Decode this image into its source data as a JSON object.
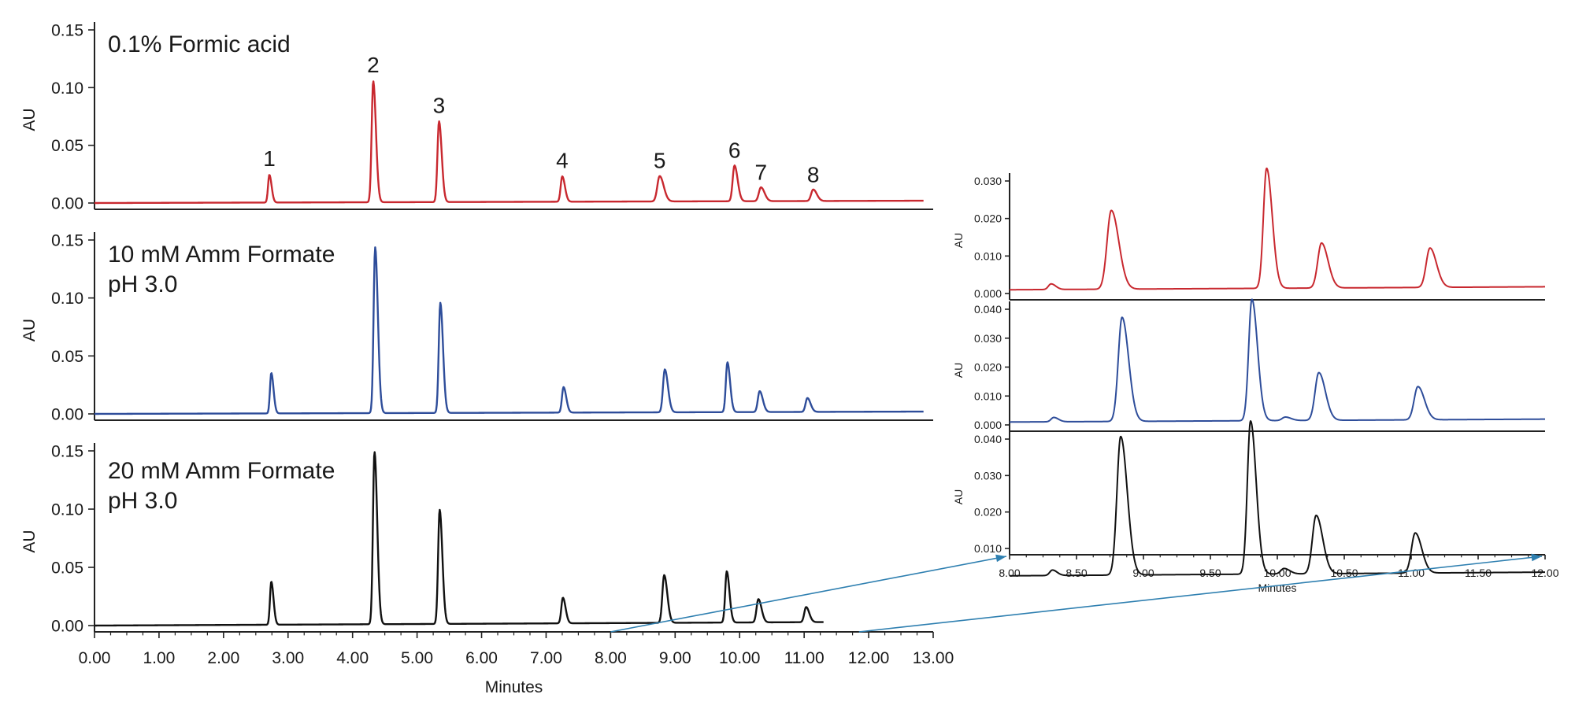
{
  "colors": {
    "red": "#c8282f",
    "blue": "#2e4d9a",
    "black": "#111111",
    "arrow": "#2e7fb0",
    "axis": "#222222"
  },
  "chart_data": [
    {
      "type": "line",
      "panel": "main-1",
      "title": "0.1% Formic acid",
      "title2": "",
      "ylabel": "AU",
      "xlabel": "",
      "xlim": [
        0,
        13
      ],
      "ylim": [
        -0.005,
        0.15
      ],
      "yticks": [
        "0.15",
        "0.10",
        "0.05",
        "0.00"
      ],
      "xticks": [],
      "color_key": "red",
      "x_end": 12.85,
      "baseline": 0.0,
      "rise_end": 0.002,
      "peaks": [
        {
          "label": "1",
          "x": 2.71,
          "y": 0.024,
          "w": 0.025
        },
        {
          "label": "2",
          "x": 4.32,
          "y": 0.105,
          "w": 0.03
        },
        {
          "label": "3",
          "x": 5.34,
          "y": 0.07,
          "w": 0.03
        },
        {
          "label": "4",
          "x": 7.25,
          "y": 0.022,
          "w": 0.03
        },
        {
          "label": "5",
          "x": 8.76,
          "y": 0.022,
          "w": 0.045
        },
        {
          "label": "6",
          "x": 9.92,
          "y": 0.031,
          "w": 0.035
        },
        {
          "label": "7",
          "x": 10.33,
          "y": 0.012,
          "w": 0.04
        },
        {
          "label": "8",
          "x": 11.14,
          "y": 0.01,
          "w": 0.04
        }
      ]
    },
    {
      "type": "line",
      "panel": "main-2",
      "title": "10 mM Amm Formate",
      "title2": "pH 3.0",
      "ylabel": "AU",
      "xlabel": "",
      "xlim": [
        0,
        13
      ],
      "ylim": [
        -0.005,
        0.15
      ],
      "yticks": [
        "0.15",
        "0.10",
        "0.05",
        "0.00"
      ],
      "xticks": [],
      "color_key": "blue",
      "x_end": 12.85,
      "baseline": 0.0,
      "rise_end": 0.002,
      "peaks": [
        {
          "label": "",
          "x": 2.74,
          "y": 0.035,
          "w": 0.025
        },
        {
          "label": "",
          "x": 4.35,
          "y": 0.143,
          "w": 0.03
        },
        {
          "label": "",
          "x": 5.36,
          "y": 0.095,
          "w": 0.03
        },
        {
          "label": "",
          "x": 7.27,
          "y": 0.022,
          "w": 0.03
        },
        {
          "label": "",
          "x": 8.84,
          "y": 0.037,
          "w": 0.035
        },
        {
          "label": "",
          "x": 9.81,
          "y": 0.043,
          "w": 0.03
        },
        {
          "label": "",
          "x": 10.31,
          "y": 0.018,
          "w": 0.035
        },
        {
          "label": "",
          "x": 11.05,
          "y": 0.012,
          "w": 0.035
        }
      ]
    },
    {
      "type": "line",
      "panel": "main-3",
      "title": "20 mM Amm Formate",
      "title2": "pH 3.0",
      "ylabel": "AU",
      "xlabel": "Minutes",
      "xlim": [
        0,
        13
      ],
      "ylim": [
        -0.005,
        0.15
      ],
      "yticks": [
        "0.15",
        "0.10",
        "0.05",
        "0.00"
      ],
      "xticks": [
        "0.00",
        "1.00",
        "2.00",
        "3.00",
        "4.00",
        "5.00",
        "6.00",
        "7.00",
        "8.00",
        "9.00",
        "10.00",
        "11.00",
        "12.00",
        "13.00"
      ],
      "color_key": "black",
      "x_end": 11.3,
      "baseline": 0.0,
      "rise_end": 0.003,
      "peaks": [
        {
          "label": "",
          "x": 2.74,
          "y": 0.037,
          "w": 0.025
        },
        {
          "label": "",
          "x": 4.34,
          "y": 0.148,
          "w": 0.03
        },
        {
          "label": "",
          "x": 5.35,
          "y": 0.098,
          "w": 0.03
        },
        {
          "label": "",
          "x": 7.26,
          "y": 0.022,
          "w": 0.03
        },
        {
          "label": "",
          "x": 8.83,
          "y": 0.041,
          "w": 0.035
        },
        {
          "label": "",
          "x": 9.8,
          "y": 0.044,
          "w": 0.03
        },
        {
          "label": "",
          "x": 10.29,
          "y": 0.02,
          "w": 0.035
        },
        {
          "label": "",
          "x": 11.03,
          "y": 0.013,
          "w": 0.035
        }
      ]
    },
    {
      "type": "line",
      "panel": "zoom-1",
      "title": "",
      "title2": "",
      "ylabel": "AU",
      "xlabel": "",
      "xlim": [
        8.0,
        12.0
      ],
      "ylim": [
        0,
        0.034
      ],
      "yticks": [
        "0.030",
        "0.020",
        "0.010",
        "0.000"
      ],
      "xticks": [],
      "color_key": "red",
      "x_end": 12.0,
      "baseline": 0.001,
      "rise_end": 0.0018,
      "peaks": [
        {
          "label": "",
          "x": 8.31,
          "y": 0.0015,
          "w": 0.025
        },
        {
          "label": "",
          "x": 8.76,
          "y": 0.021,
          "w": 0.04
        },
        {
          "label": "",
          "x": 9.92,
          "y": 0.032,
          "w": 0.03
        },
        {
          "label": "",
          "x": 10.33,
          "y": 0.012,
          "w": 0.035
        },
        {
          "label": "",
          "x": 11.14,
          "y": 0.0105,
          "w": 0.035
        }
      ]
    },
    {
      "type": "line",
      "panel": "zoom-2",
      "title": "",
      "title2": "",
      "ylabel": "AU",
      "xlabel": "",
      "xlim": [
        8.0,
        12.0
      ],
      "ylim": [
        0,
        0.045
      ],
      "yticks": [
        "0.040",
        "0.030",
        "0.020",
        "0.010",
        "0.000"
      ],
      "xticks": [],
      "color_key": "blue",
      "x_end": 12.0,
      "baseline": 0.001,
      "rise_end": 0.002,
      "peaks": [
        {
          "label": "",
          "x": 8.33,
          "y": 0.0015,
          "w": 0.025
        },
        {
          "label": "",
          "x": 8.84,
          "y": 0.036,
          "w": 0.035
        },
        {
          "label": "",
          "x": 9.81,
          "y": 0.042,
          "w": 0.03
        },
        {
          "label": "",
          "x": 10.06,
          "y": 0.0012,
          "w": 0.03
        },
        {
          "label": "",
          "x": 10.31,
          "y": 0.0165,
          "w": 0.035
        },
        {
          "label": "",
          "x": 11.05,
          "y": 0.0115,
          "w": 0.035
        }
      ]
    },
    {
      "type": "line",
      "panel": "zoom-3",
      "title": "",
      "title2": "",
      "ylabel": "AU",
      "xlabel": "Minutes",
      "xlim": [
        8.0,
        12.0
      ],
      "ylim": [
        0,
        0.046
      ],
      "yticks": [
        "0.040",
        "0.030",
        "0.020",
        "0.010"
      ],
      "xticks": [
        "8.00",
        "8.50",
        "9.00",
        "9.50",
        "10.00",
        "10.50",
        "11.00",
        "11.50",
        "12.00"
      ],
      "color_key": "black",
      "x_end": 12.0,
      "baseline": 0.0025,
      "rise_end": 0.0035,
      "peaks": [
        {
          "label": "",
          "x": 8.32,
          "y": 0.0015,
          "w": 0.025
        },
        {
          "label": "",
          "x": 8.83,
          "y": 0.038,
          "w": 0.035
        },
        {
          "label": "",
          "x": 9.8,
          "y": 0.042,
          "w": 0.03
        },
        {
          "label": "",
          "x": 10.05,
          "y": 0.0015,
          "w": 0.03
        },
        {
          "label": "",
          "x": 10.29,
          "y": 0.016,
          "w": 0.035
        },
        {
          "label": "",
          "x": 11.03,
          "y": 0.011,
          "w": 0.035
        }
      ]
    }
  ]
}
